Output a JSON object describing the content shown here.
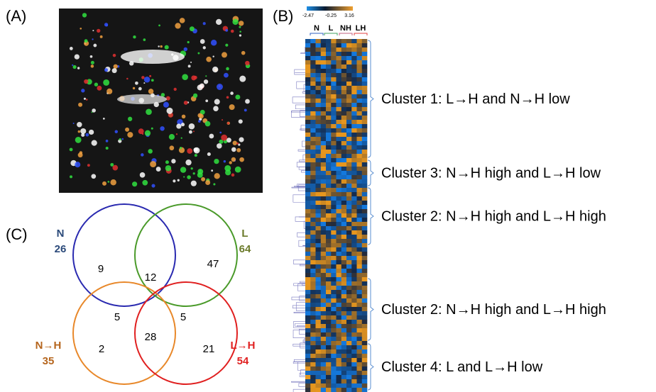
{
  "panels": {
    "a": {
      "label": "(A)"
    },
    "b": {
      "label": "(B)",
      "scale": [
        -2.47,
        -0.25,
        3.16
      ],
      "columns": [
        "N",
        "L",
        "NH",
        "LH"
      ],
      "clusters": [
        "Cluster 1: L→H and N→H low",
        "Cluster 3: N→H high and L→H low",
        "Cluster 2: N→H high and L→H high",
        "Cluster 2: N→H high and L→H high",
        "Cluster 4: L and L→H low"
      ]
    },
    "c": {
      "label": "(C)",
      "sets": [
        {
          "name": "N",
          "count": 26
        },
        {
          "name": "L",
          "count": 64
        },
        {
          "name": "N→H",
          "count": 35
        },
        {
          "name": "L→H",
          "count": 54
        }
      ],
      "regions": [
        9,
        12,
        47,
        5,
        5,
        2,
        28,
        21
      ]
    }
  }
}
